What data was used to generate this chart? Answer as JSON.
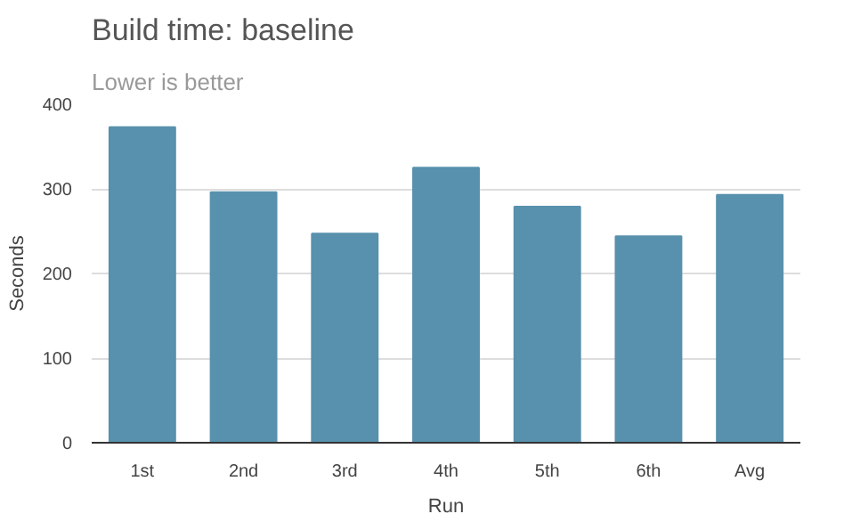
{
  "chart_data": {
    "type": "bar",
    "title": "Build time: baseline",
    "subtitle": "Lower is better",
    "xlabel": "Run",
    "ylabel": "Seconds",
    "categories": [
      "1st",
      "2nd",
      "3rd",
      "4th",
      "5th",
      "6th",
      "Avg"
    ],
    "values": [
      373,
      296,
      247,
      325,
      279,
      244,
      293
    ],
    "color": "#5891ad",
    "ylim": [
      0,
      400
    ],
    "yticks": [
      0,
      100,
      200,
      300,
      400
    ],
    "grid": "y"
  }
}
